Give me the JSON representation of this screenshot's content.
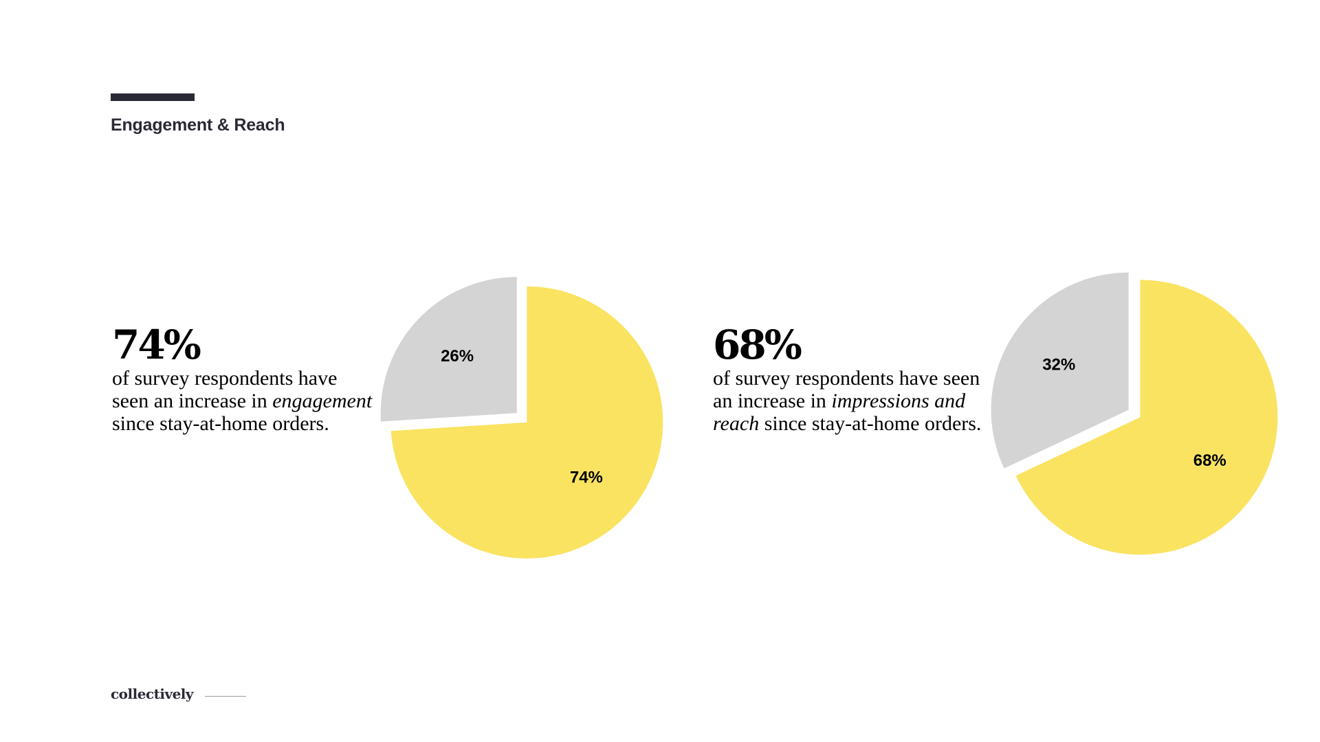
{
  "header": {
    "title": "Engagement & Reach"
  },
  "stats": [
    {
      "value": "74%",
      "text_before": "of survey respondents have seen an increase in ",
      "text_emphasis": "engagement",
      "text_after": " since stay-at-home orders."
    },
    {
      "value": "68%",
      "text_before": "of survey respondents have seen an increase in ",
      "text_emphasis": "impressions and reach",
      "text_after": " since stay-at-home orders."
    }
  ],
  "chart_data": [
    {
      "type": "pie",
      "slices": [
        {
          "value": 74,
          "label": "74%",
          "color": "#f9e361"
        },
        {
          "value": 26,
          "label": "26%",
          "color": "#d4d4d4"
        }
      ]
    },
    {
      "type": "pie",
      "slices": [
        {
          "value": 68,
          "label": "68%",
          "color": "#f9e361"
        },
        {
          "value": 32,
          "label": "32%",
          "color": "#d4d4d4"
        }
      ]
    }
  ],
  "footer": {
    "logo_text": "collectively"
  }
}
